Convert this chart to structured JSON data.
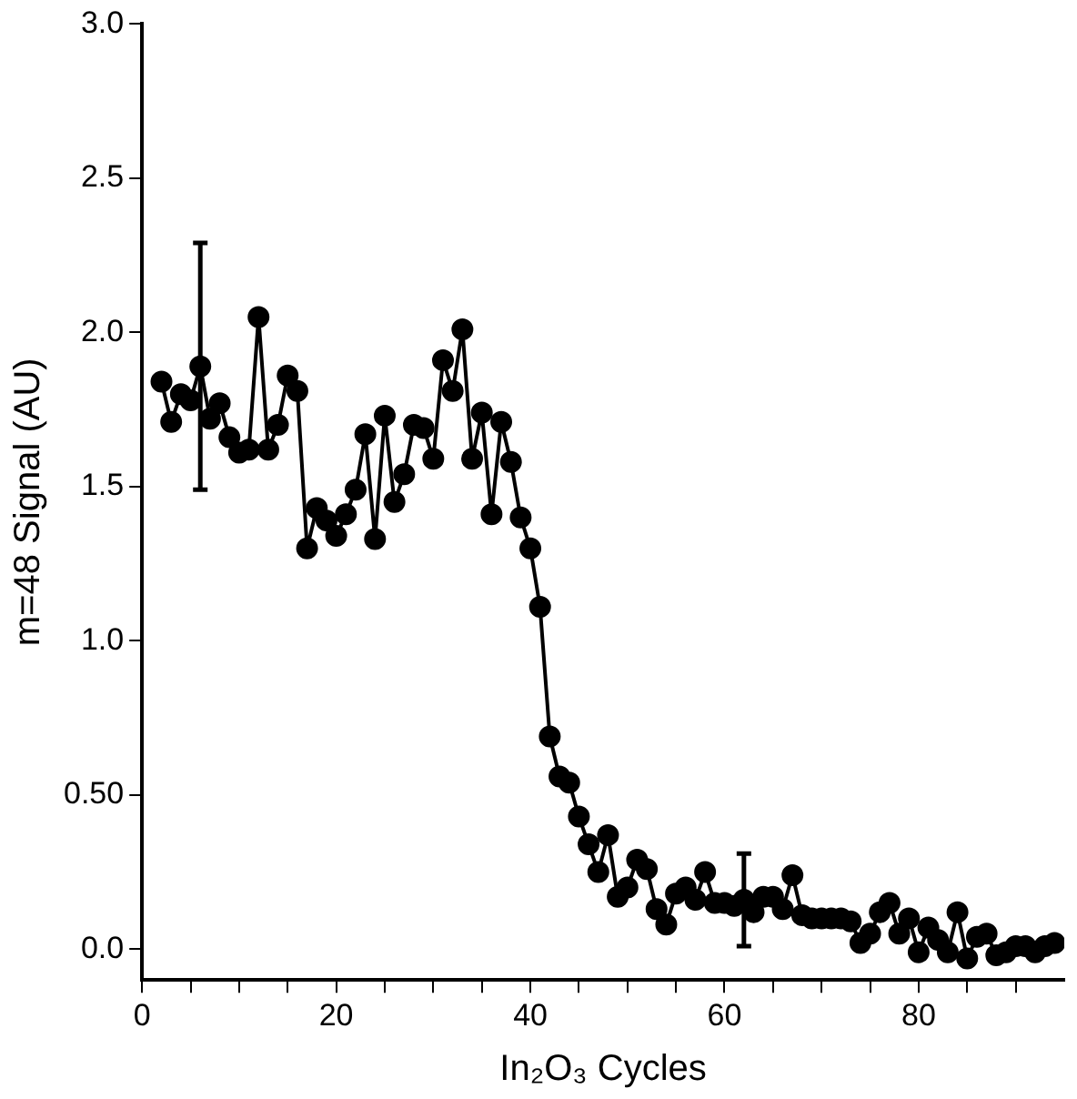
{
  "chart_data": {
    "type": "line",
    "xlabel": "In₂O₃ Cycles",
    "ylabel": "m=48 Signal (AU)",
    "marker": "circle",
    "line_style": "solid",
    "grid": false,
    "legend": false,
    "xlim": [
      0,
      95
    ],
    "ylim": [
      -0.1,
      3.0
    ],
    "xticks": [
      0,
      {
        "value": 5,
        "label": null
      },
      {
        "value": 10,
        "label": null
      },
      {
        "value": 15,
        "label": null
      },
      20,
      {
        "value": 25,
        "label": null
      },
      {
        "value": 30,
        "label": null
      },
      {
        "value": 35,
        "label": null
      },
      40,
      {
        "value": 45,
        "label": null
      },
      {
        "value": 50,
        "label": null
      },
      {
        "value": 55,
        "label": null
      },
      60,
      {
        "value": 65,
        "label": null
      },
      {
        "value": 70,
        "label": null
      },
      {
        "value": 75,
        "label": null
      },
      80,
      {
        "value": 85,
        "label": null
      },
      {
        "value": 90,
        "label": null
      }
    ],
    "yticks": [
      {
        "value": 0,
        "label": "0.0"
      },
      {
        "value": 0.5,
        "label": "0.50"
      },
      {
        "value": 1,
        "label": "1.0"
      },
      1.5,
      {
        "value": 2,
        "label": "2.0"
      },
      2.5,
      {
        "value": 3,
        "label": "3.0"
      }
    ],
    "x": [
      2,
      3,
      4,
      5,
      6,
      7,
      8,
      9,
      10,
      11,
      12,
      13,
      14,
      15,
      16,
      17,
      18,
      19,
      20,
      21,
      22,
      23,
      24,
      25,
      26,
      27,
      28,
      29,
      30,
      31,
      32,
      33,
      34,
      35,
      36,
      37,
      38,
      39,
      40,
      41,
      42,
      43,
      44,
      45,
      46,
      47,
      48,
      49,
      50,
      51,
      52,
      53,
      54,
      55,
      56,
      57,
      58,
      59,
      60,
      61,
      62,
      63,
      64,
      65,
      66,
      67,
      68,
      69,
      70,
      71,
      72,
      73,
      74,
      75,
      76,
      77,
      78,
      79,
      80,
      81,
      82,
      83,
      84,
      85,
      86,
      87,
      88,
      89,
      90,
      91,
      92,
      93,
      94
    ],
    "series": [
      {
        "color": "#000000",
        "values": [
          1.84,
          1.71,
          1.8,
          1.78,
          1.89,
          1.72,
          1.77,
          1.66,
          1.61,
          1.62,
          2.05,
          1.62,
          1.7,
          1.86,
          1.81,
          1.3,
          1.43,
          1.39,
          1.34,
          1.41,
          1.49,
          1.67,
          1.33,
          1.73,
          1.45,
          1.54,
          1.7,
          1.69,
          1.59,
          1.91,
          1.81,
          2.01,
          1.59,
          1.74,
          1.41,
          1.71,
          1.58,
          1.4,
          1.3,
          1.11,
          0.69,
          0.56,
          0.54,
          0.43,
          0.34,
          0.25,
          0.37,
          0.17,
          0.2,
          0.29,
          0.26,
          0.13,
          0.08,
          0.18,
          0.2,
          0.16,
          0.25,
          0.15,
          0.15,
          0.14,
          0.16,
          0.12,
          0.17,
          0.17,
          0.13,
          0.24,
          0.11,
          0.1,
          0.1,
          0.1,
          0.1,
          0.09,
          0.02,
          0.05,
          0.12,
          0.15,
          0.05,
          0.1,
          -0.01,
          0.07,
          0.03,
          -0.01,
          0.12,
          -0.03,
          0.04,
          0.05,
          -0.02,
          -0.01,
          0.01,
          0.01,
          -0.01,
          0.01,
          0.02
        ],
        "errors": [
          null,
          null,
          null,
          null,
          0.4,
          null,
          null,
          null,
          null,
          null,
          null,
          null,
          null,
          null,
          null,
          null,
          null,
          null,
          null,
          null,
          null,
          null,
          null,
          null,
          null,
          null,
          null,
          null,
          null,
          null,
          null,
          null,
          null,
          null,
          null,
          null,
          null,
          null,
          null,
          null,
          null,
          null,
          null,
          null,
          null,
          null,
          null,
          null,
          null,
          null,
          null,
          null,
          null,
          null,
          null,
          null,
          null,
          null,
          null,
          null,
          [
            0.01,
            0.31
          ],
          null,
          null,
          null,
          null,
          null,
          null,
          null,
          null,
          null,
          null,
          null,
          null,
          null,
          null,
          null,
          null,
          null,
          null,
          null,
          null,
          null,
          null,
          null,
          null,
          null,
          null,
          null,
          null,
          null,
          null,
          null,
          null
        ]
      }
    ]
  }
}
